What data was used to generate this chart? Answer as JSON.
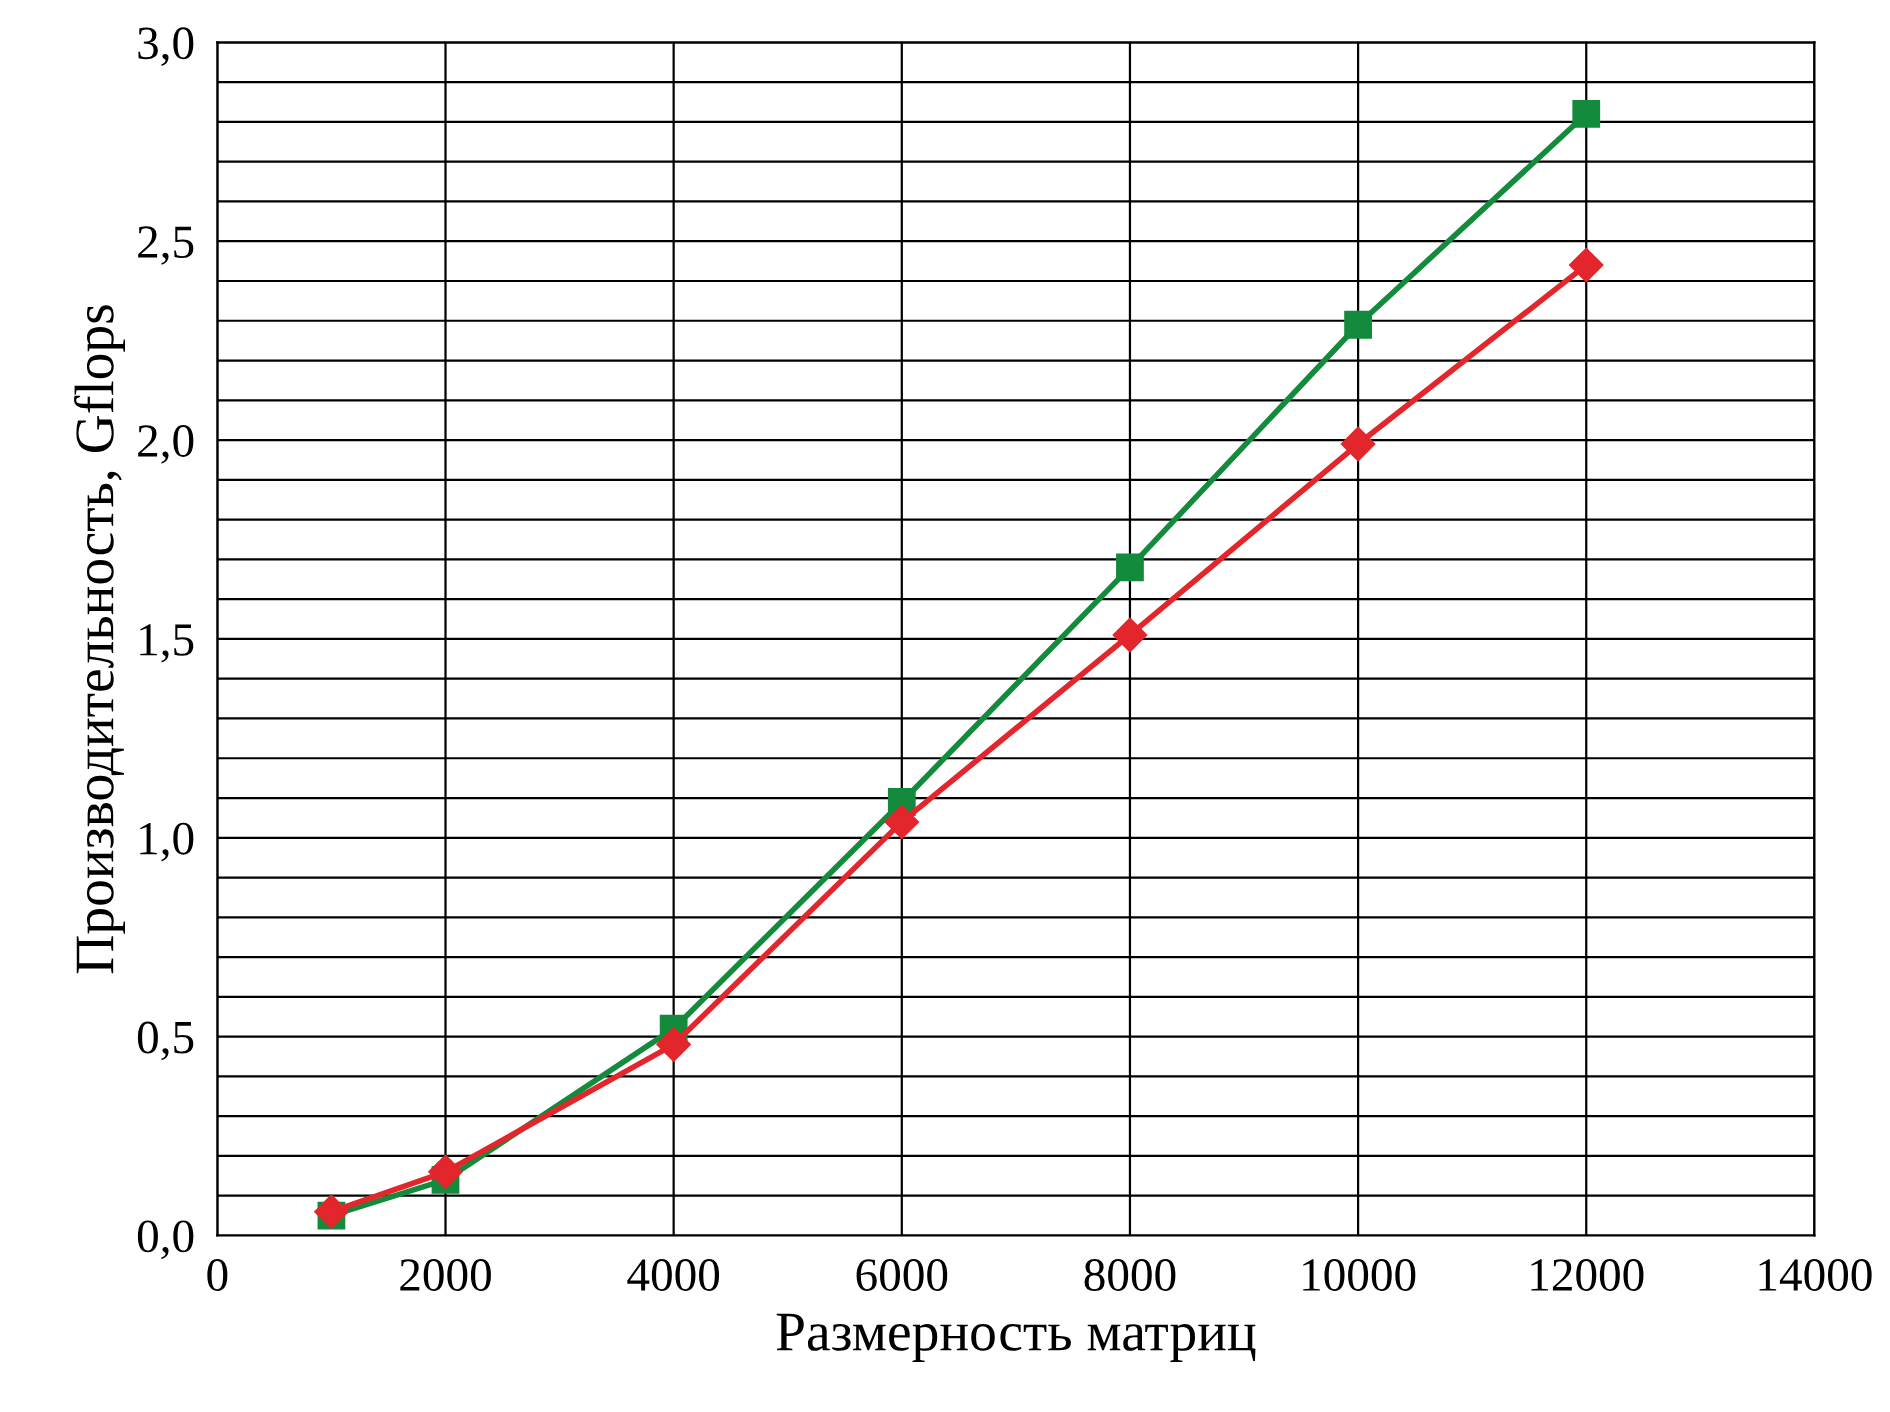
{
  "chart_data": {
    "type": "line",
    "xlabel": "Размерность матриц",
    "ylabel": "Производительность, Gflops",
    "x": [
      1000,
      2000,
      4000,
      6000,
      8000,
      10000,
      12000
    ],
    "series": [
      {
        "color": "#e3262b",
        "marker": "diamond",
        "values": [
          0.06,
          0.16,
          0.48,
          1.04,
          1.51,
          1.99,
          2.44
        ]
      },
      {
        "color": "#138a3c",
        "marker": "square",
        "values": [
          0.05,
          0.14,
          0.52,
          1.09,
          1.68,
          2.29,
          2.82
        ]
      }
    ],
    "xlim": [
      0,
      14000
    ],
    "xticks": [
      0,
      2000,
      4000,
      6000,
      8000,
      10000,
      12000,
      14000
    ],
    "ylim": [
      0,
      3
    ],
    "yticks": [
      {
        "value": 0,
        "label": "0,0"
      },
      {
        "value": 0.1,
        "label": null
      },
      {
        "value": 0.2,
        "label": null
      },
      {
        "value": 0.3,
        "label": null
      },
      {
        "value": 0.4,
        "label": null
      },
      {
        "value": 0.5,
        "label": "0,5"
      },
      {
        "value": 0.6,
        "label": null
      },
      {
        "value": 0.7,
        "label": null
      },
      {
        "value": 0.8,
        "label": null
      },
      {
        "value": 0.9,
        "label": null
      },
      {
        "value": 1.0,
        "label": "1,0"
      },
      {
        "value": 1.1,
        "label": null
      },
      {
        "value": 1.2,
        "label": null
      },
      {
        "value": 1.3,
        "label": null
      },
      {
        "value": 1.4,
        "label": null
      },
      {
        "value": 1.5,
        "label": "1,5"
      },
      {
        "value": 1.6,
        "label": null
      },
      {
        "value": 1.7,
        "label": null
      },
      {
        "value": 1.8,
        "label": null
      },
      {
        "value": 1.9,
        "label": null
      },
      {
        "value": 2.0,
        "label": "2,0"
      },
      {
        "value": 2.1,
        "label": null
      },
      {
        "value": 2.2,
        "label": null
      },
      {
        "value": 2.3,
        "label": null
      },
      {
        "value": 2.4,
        "label": null
      },
      {
        "value": 2.5,
        "label": "2,5"
      },
      {
        "value": 2.6,
        "label": null
      },
      {
        "value": 2.7,
        "label": null
      },
      {
        "value": 2.8,
        "label": null
      },
      {
        "value": 2.9,
        "label": null
      },
      {
        "value": 3.0,
        "label": "3,0"
      }
    ],
    "grid": true
  }
}
